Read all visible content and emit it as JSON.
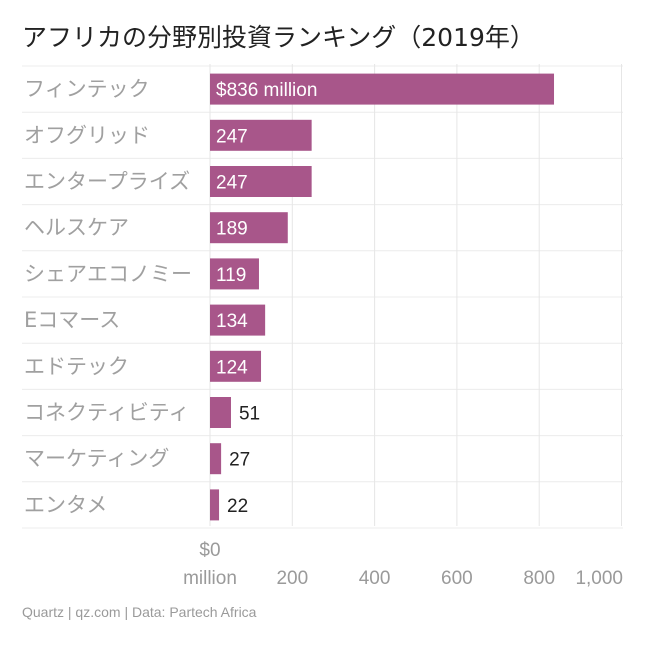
{
  "chart_data": {
    "type": "bar",
    "orientation": "horizontal",
    "title": "アフリカの分野別投資ランキング（2019年）",
    "categories": [
      "フィンテック",
      "オフグリッド",
      "エンタープライズ",
      "ヘルスケア",
      "シェアエコノミー",
      "Eコマース",
      "エドテック",
      "コネクティビティ",
      "マーケティング",
      "エンタメ"
    ],
    "values": [
      836,
      247,
      247,
      189,
      119,
      134,
      124,
      51,
      27,
      22
    ],
    "value_labels": [
      "$836 million",
      "247",
      "247",
      "189",
      "119",
      "134",
      "124",
      "51",
      "27",
      "22"
    ],
    "xlim": [
      0,
      1000
    ],
    "x_ticks": [
      0,
      200,
      400,
      600,
      800,
      1000
    ],
    "x_tick_labels": [
      [
        "$0",
        "million"
      ],
      [
        "200"
      ],
      [
        "400"
      ],
      [
        "600"
      ],
      [
        "800"
      ],
      [
        "1,000"
      ]
    ],
    "grid": true,
    "bar_color": "#a8568a"
  },
  "footer": "Quartz | qz.com | Data: Partech Africa"
}
